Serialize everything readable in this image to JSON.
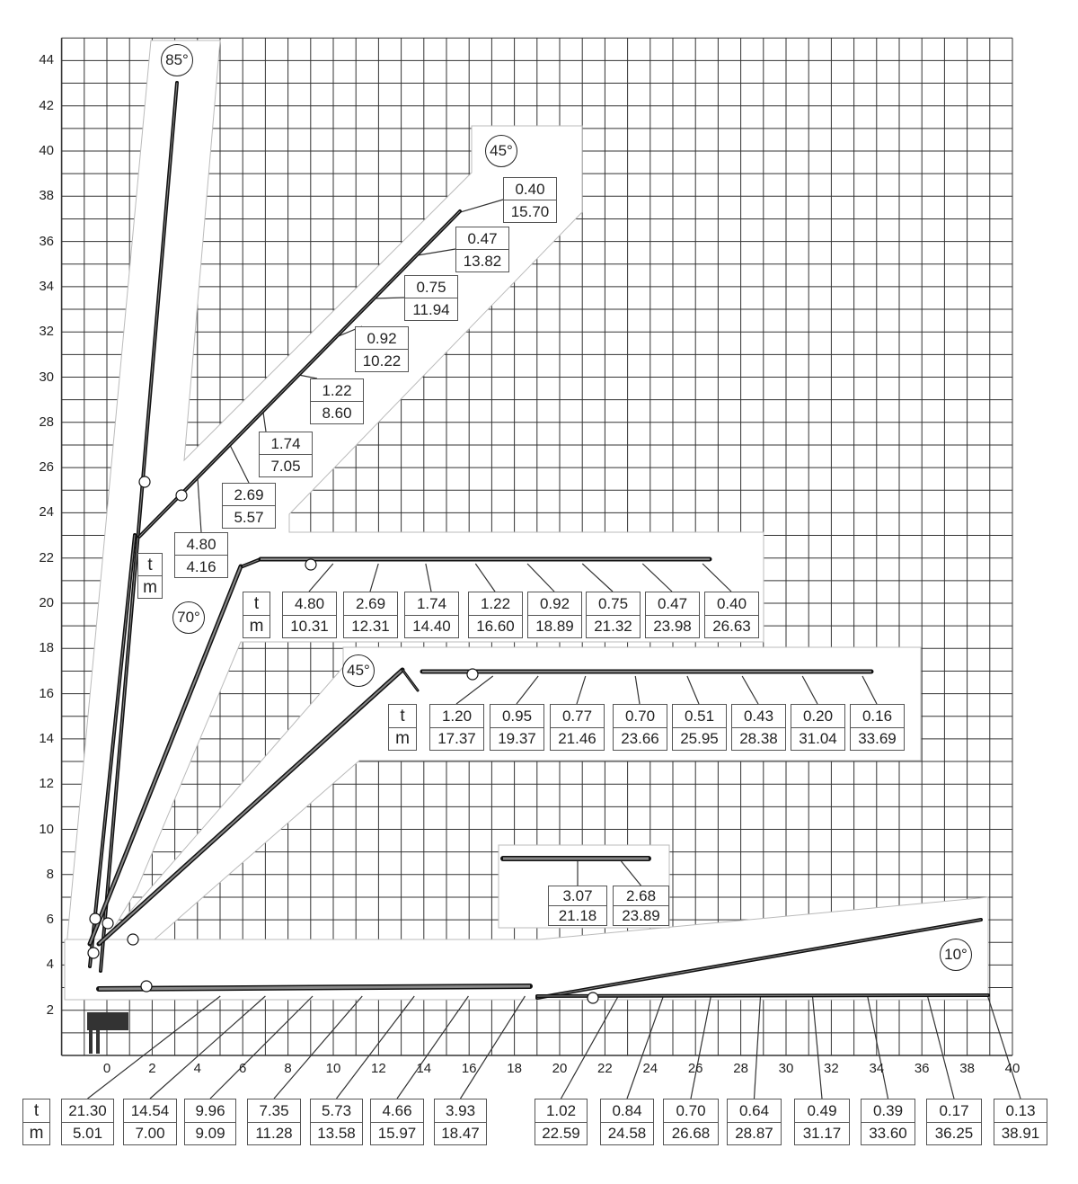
{
  "axes": {
    "x_ticks": [
      "0",
      "2",
      "4",
      "6",
      "8",
      "10",
      "12",
      "14",
      "16",
      "18",
      "20",
      "22",
      "24",
      "26",
      "28",
      "30",
      "32",
      "34",
      "36",
      "38",
      "40"
    ],
    "y_ticks": [
      "2",
      "4",
      "6",
      "8",
      "10",
      "12",
      "14",
      "16",
      "18",
      "20",
      "22",
      "24",
      "26",
      "28",
      "30",
      "32",
      "34",
      "36",
      "38",
      "40",
      "42",
      "44"
    ],
    "x_range": [
      -2,
      40
    ],
    "y_range": [
      0,
      45
    ]
  },
  "units": {
    "load": "t",
    "radius": "m"
  },
  "angles": {
    "a85": "85°",
    "a45_upper": "45°",
    "a70": "70°",
    "a45_lower": "45°",
    "a10": "10°"
  },
  "boom_45_upper": [
    {
      "t": "4.80",
      "m": "4.16"
    },
    {
      "t": "2.69",
      "m": "5.57"
    },
    {
      "t": "1.74",
      "m": "7.05"
    },
    {
      "t": "1.22",
      "m": "8.60"
    },
    {
      "t": "0.92",
      "m": "10.22"
    },
    {
      "t": "0.75",
      "m": "11.94"
    },
    {
      "t": "0.47",
      "m": "13.82"
    },
    {
      "t": "0.40",
      "m": "15.70"
    }
  ],
  "boom_70": [
    {
      "t": "4.80",
      "m": "10.31"
    },
    {
      "t": "2.69",
      "m": "12.31"
    },
    {
      "t": "1.74",
      "m": "14.40"
    },
    {
      "t": "1.22",
      "m": "16.60"
    },
    {
      "t": "0.92",
      "m": "18.89"
    },
    {
      "t": "0.75",
      "m": "21.32"
    },
    {
      "t": "0.47",
      "m": "23.98"
    },
    {
      "t": "0.40",
      "m": "26.63"
    }
  ],
  "boom_45_lower": [
    {
      "t": "1.20",
      "m": "17.37"
    },
    {
      "t": "0.95",
      "m": "19.37"
    },
    {
      "t": "0.77",
      "m": "21.46"
    },
    {
      "t": "0.70",
      "m": "23.66"
    },
    {
      "t": "0.51",
      "m": "25.95"
    },
    {
      "t": "0.43",
      "m": "28.38"
    },
    {
      "t": "0.20",
      "m": "31.04"
    },
    {
      "t": "0.16",
      "m": "33.69"
    }
  ],
  "boom_middle": [
    {
      "t": "3.07",
      "m": "21.18"
    },
    {
      "t": "2.68",
      "m": "23.89"
    }
  ],
  "boom_horizontal": [
    {
      "t": "21.30",
      "m": "5.01"
    },
    {
      "t": "14.54",
      "m": "7.00"
    },
    {
      "t": "9.96",
      "m": "9.09"
    },
    {
      "t": "7.35",
      "m": "11.28"
    },
    {
      "t": "5.73",
      "m": "13.58"
    },
    {
      "t": "4.66",
      "m": "15.97"
    },
    {
      "t": "3.93",
      "m": "18.47"
    },
    {
      "t": "1.02",
      "m": "22.59"
    },
    {
      "t": "0.84",
      "m": "24.58"
    },
    {
      "t": "0.70",
      "m": "26.68"
    },
    {
      "t": "0.64",
      "m": "28.87"
    },
    {
      "t": "0.49",
      "m": "31.17"
    },
    {
      "t": "0.39",
      "m": "33.60"
    },
    {
      "t": "0.17",
      "m": "36.25"
    },
    {
      "t": "0.13",
      "m": "38.91"
    }
  ],
  "colors": {
    "grid": "#333333",
    "boom": "#111111",
    "leader": "#333333",
    "box_border": "#555555"
  }
}
